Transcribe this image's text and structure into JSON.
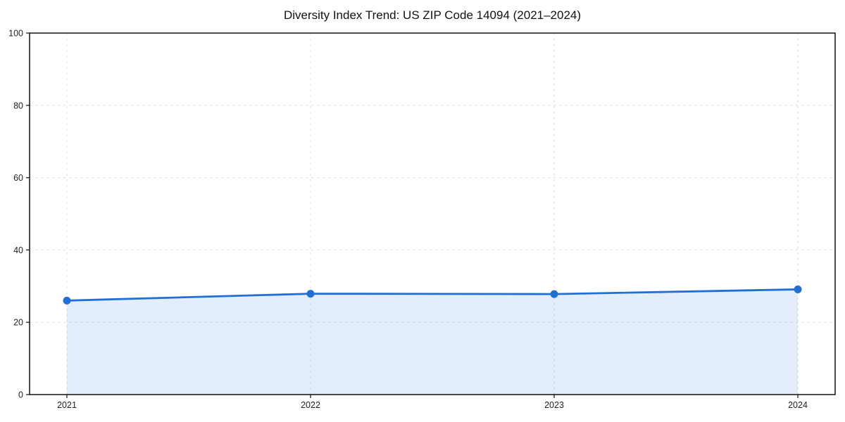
{
  "page": {
    "background": "#ffffff"
  },
  "chart_data": {
    "type": "line",
    "title": "Diversity Index Trend: US ZIP Code 14094 (2021–2024)",
    "x": [
      2021,
      2022,
      2023,
      2024
    ],
    "xtick_labels": [
      "2021",
      "2022",
      "2023",
      "2024"
    ],
    "series": [
      {
        "name": "Diversity Index",
        "values": [
          26.0,
          27.9,
          27.8,
          29.1
        ]
      }
    ],
    "xlabel": "",
    "ylabel": "",
    "ylim": [
      0,
      100
    ],
    "yticks": [
      0,
      20,
      40,
      60,
      80,
      100
    ],
    "grid": "dashed-both-axes",
    "legend": "none",
    "marker": "circle",
    "area_fill": true,
    "colors": {
      "line": "#1f6fd6",
      "marker": "#1f6fd6",
      "fill": "#1f6fd6",
      "fill_opacity": 0.12,
      "grid": "#dcdcdc",
      "spine": "#111111",
      "tick_label": "#222222",
      "title": "#111111"
    }
  }
}
